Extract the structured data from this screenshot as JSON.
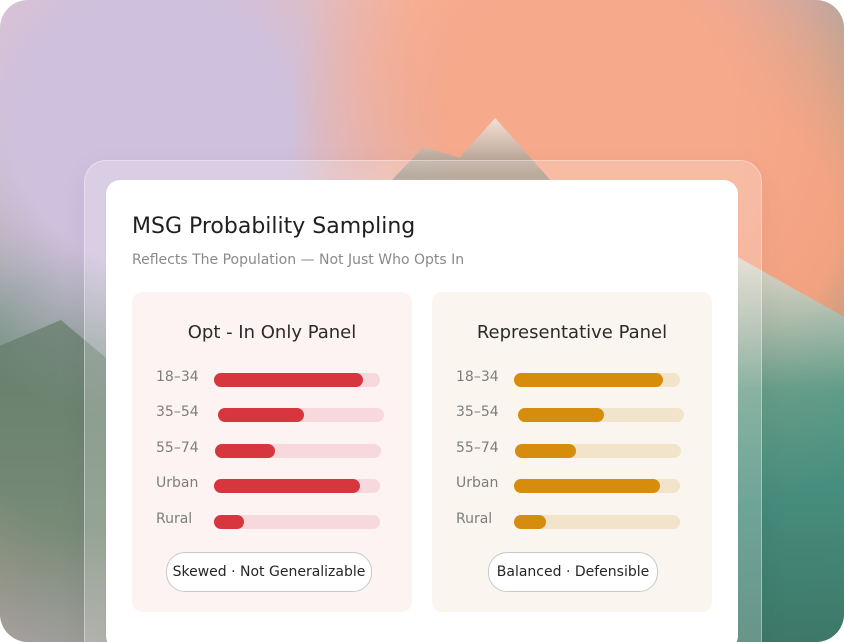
{
  "main": {
    "title": "MSG Probability Sampling",
    "subtitle": "Reflects The Population — Not Just Who Opts In",
    "panels": [
      {
        "title": "Opt - In Only Panel",
        "footer": "Skewed · Not Generalizable",
        "rows": [
          {
            "label": "18–34",
            "fill_percent": 90
          },
          {
            "label": "35–54",
            "fill_percent": 52
          },
          {
            "label": "55–74",
            "fill_percent": 36
          },
          {
            "label": "Urban",
            "fill_percent": 88
          },
          {
            "label": "Rural",
            "fill_percent": 18
          }
        ]
      },
      {
        "title": "Representative Panel",
        "footer": "Balanced · Defensible",
        "rows": [
          {
            "label": "18–34",
            "fill_percent": 90
          },
          {
            "label": "35–54",
            "fill_percent": 52
          },
          {
            "label": "55–74",
            "fill_percent": 37
          },
          {
            "label": "Urban",
            "fill_percent": 88
          },
          {
            "label": "Rural",
            "fill_percent": 19
          }
        ]
      }
    ]
  },
  "colors": {
    "left_fill": "#d8363f",
    "left_track": "#f7d8dd",
    "right_fill": "#d68c0d",
    "right_track": "#f2e4ca"
  }
}
